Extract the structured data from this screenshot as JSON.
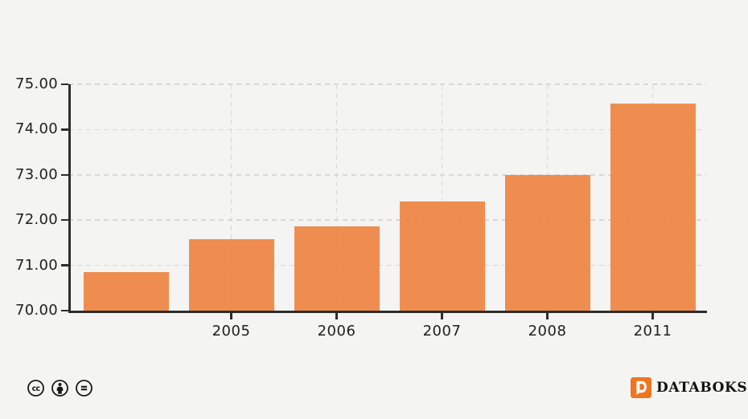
{
  "chart_data": {
    "type": "bar",
    "categories": [
      "",
      "2005",
      "2006",
      "2007",
      "2008",
      "2011"
    ],
    "values": [
      70.85,
      71.57,
      71.86,
      72.42,
      73.0,
      74.57
    ],
    "title": "",
    "xlabel": "",
    "ylabel": "",
    "ylim": [
      70,
      75
    ],
    "ytick_step": 1,
    "ytick_decimals": 2,
    "ytick_labels": [
      "70.00",
      "71.00",
      "72.00",
      "73.00",
      "74.00",
      "75.00"
    ],
    "grid": true,
    "legend_position": "none",
    "bar_color": "#ef8a4c"
  },
  "footer": {
    "brand": "DATABOKS",
    "license_icons": [
      "creative-commons-icon",
      "attribution-icon",
      "no-derivatives-icon"
    ]
  },
  "colors": {
    "background": "#f4f4f2",
    "bar": "#ef8a4c",
    "axis": "#2d2d2d",
    "gridline": "#d8d8d8",
    "tick_text": "#202020",
    "logo_orange": "#f0751f",
    "logo_text": "#111111",
    "icon_stroke": "#1a1a1a"
  }
}
